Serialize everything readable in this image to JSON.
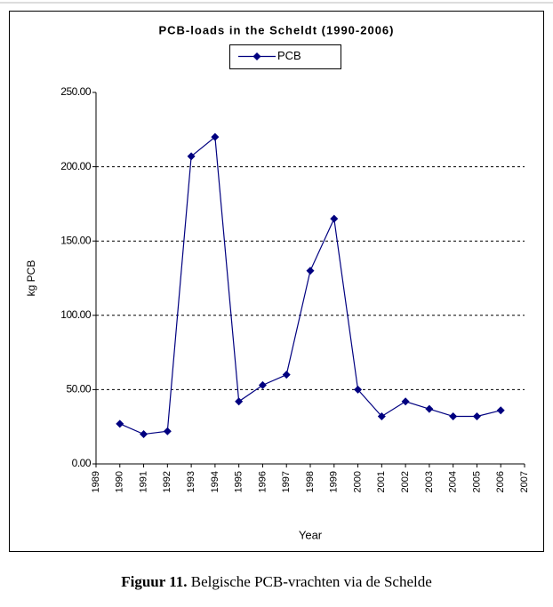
{
  "chart_data": {
    "type": "line",
    "title": "PCB-loads in the Scheldt (1990-2006)",
    "x": [
      1990,
      1991,
      1992,
      1993,
      1994,
      1995,
      1996,
      1997,
      1998,
      1999,
      2000,
      2001,
      2002,
      2003,
      2004,
      2005,
      2006
    ],
    "series": [
      {
        "name": "PCB",
        "color": "#000080",
        "values": [
          27,
          20,
          22,
          207,
          220,
          42,
          53,
          60,
          130,
          165,
          50,
          32,
          42,
          37,
          32,
          32,
          36
        ]
      }
    ],
    "xlabel": "Year",
    "ylabel": "kg PCB",
    "xlim": [
      1989,
      2007
    ],
    "xticks": [
      1989,
      1990,
      1991,
      1992,
      1993,
      1994,
      1995,
      1996,
      1997,
      1998,
      1999,
      2000,
      2001,
      2002,
      2003,
      2004,
      2005,
      2006,
      2007
    ],
    "ylim": [
      0,
      250
    ],
    "yticks": [
      {
        "value": 0,
        "label": "0.00"
      },
      {
        "value": 50,
        "label": "50.00"
      },
      {
        "value": 100,
        "label": "100.00"
      },
      {
        "value": 150,
        "label": "150.00"
      },
      {
        "value": 200,
        "label": "200.00"
      },
      {
        "value": 250,
        "label": "250.00"
      }
    ],
    "grid": true,
    "legend": "top"
  },
  "caption": {
    "label": "Figuur 11.",
    "text": " Belgische PCB-vrachten via de Schelde"
  }
}
